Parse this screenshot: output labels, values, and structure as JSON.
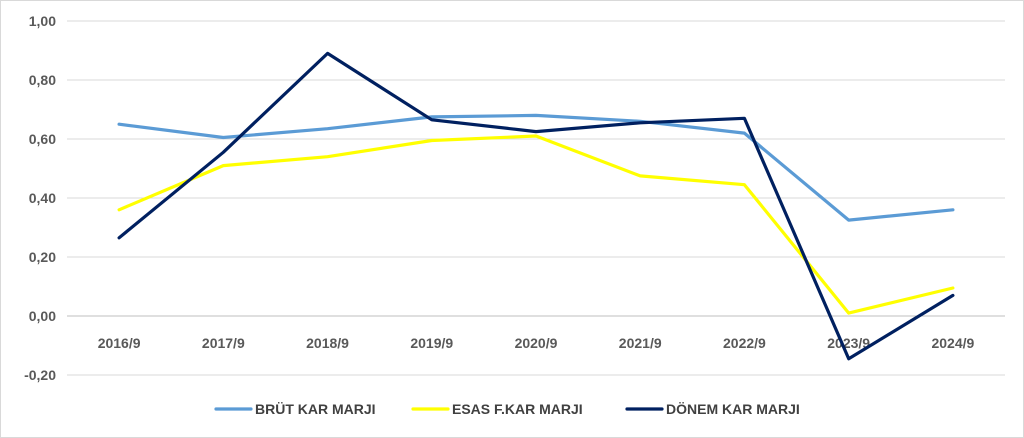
{
  "chart_data": {
    "type": "line",
    "title": "",
    "xlabel": "",
    "ylabel": "",
    "categories": [
      "2016/9",
      "2017/9",
      "2018/9",
      "2019/9",
      "2020/9",
      "2021/9",
      "2022/9",
      "2023/9",
      "2024/9"
    ],
    "y_tick_labels": [
      "1,00",
      "0,80",
      "0,60",
      "0,40",
      "0,20",
      "0,00",
      "-0,20"
    ],
    "ylim": [
      -0.2,
      1.0
    ],
    "grid": true,
    "legend_position": "bottom",
    "series": [
      {
        "name": "BRÜT KAR MARJI",
        "color": "#5b9bd5",
        "values": [
          0.65,
          0.605,
          0.635,
          0.675,
          0.68,
          0.66,
          0.62,
          0.325,
          0.36
        ]
      },
      {
        "name": "ESAS F.KAR MARJI",
        "color": "#ffff00",
        "values": [
          0.36,
          0.51,
          0.54,
          0.595,
          0.61,
          0.475,
          0.445,
          0.01,
          0.095
        ]
      },
      {
        "name": "DÖNEM KAR MARJI",
        "color": "#002060",
        "values": [
          0.265,
          0.555,
          0.89,
          0.665,
          0.625,
          0.655,
          0.67,
          -0.145,
          0.07
        ]
      }
    ]
  }
}
